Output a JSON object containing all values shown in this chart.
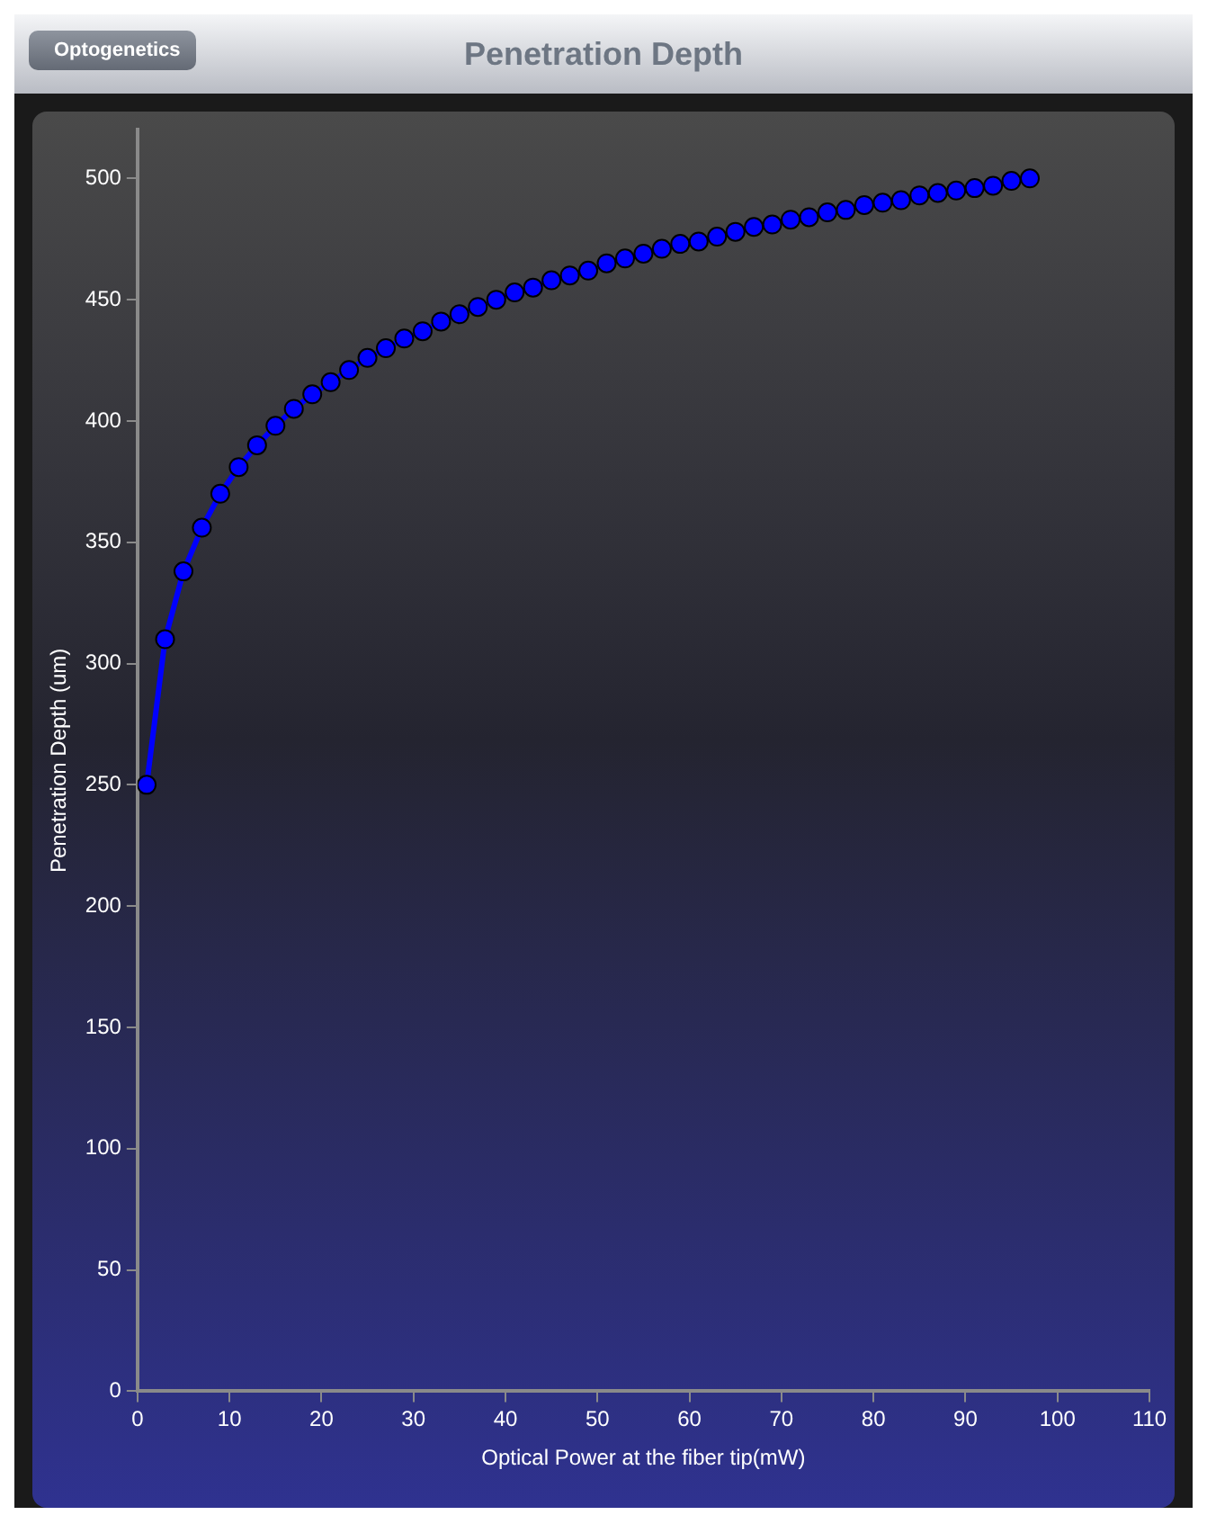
{
  "chart_data": {
    "type": "line",
    "title": "Penetration Depth",
    "annotations": [
      "Optogenetics"
    ],
    "xlabel": "Optical Power at the fiber tip(mW)",
    "ylabel": "Penetration Depth (um)",
    "x": [
      1,
      3,
      5,
      7,
      9,
      11,
      13,
      15,
      17,
      19,
      21,
      23,
      25,
      27,
      29,
      31,
      33,
      35,
      37,
      39,
      41,
      43,
      45,
      47,
      49,
      51,
      53,
      55,
      57,
      59,
      61,
      63,
      65,
      67,
      69,
      71,
      73,
      75,
      77,
      79,
      81,
      83,
      85,
      87,
      89,
      91,
      93,
      95,
      97
    ],
    "series": [
      {
        "color": "#0000ff",
        "values": [
          250,
          310,
          338,
          356,
          370,
          381,
          390,
          398,
          405,
          411,
          416,
          421,
          426,
          430,
          434,
          437,
          441,
          444,
          447,
          450,
          453,
          455,
          458,
          460,
          462,
          465,
          467,
          469,
          471,
          473,
          474,
          476,
          478,
          480,
          481,
          483,
          484,
          486,
          487,
          489,
          490,
          491,
          493,
          494,
          495,
          496,
          497,
          499,
          500
        ]
      }
    ],
    "xlim": [
      0,
      110
    ],
    "xticks": [
      0,
      10,
      20,
      30,
      40,
      50,
      60,
      70,
      80,
      90,
      100,
      110
    ],
    "ylim": [
      0,
      520
    ],
    "yticks": [
      0,
      50,
      100,
      150,
      200,
      250,
      300,
      350,
      400,
      450,
      500
    ],
    "grid": false,
    "legend": false,
    "marker": "circle",
    "line_style": "solid"
  }
}
